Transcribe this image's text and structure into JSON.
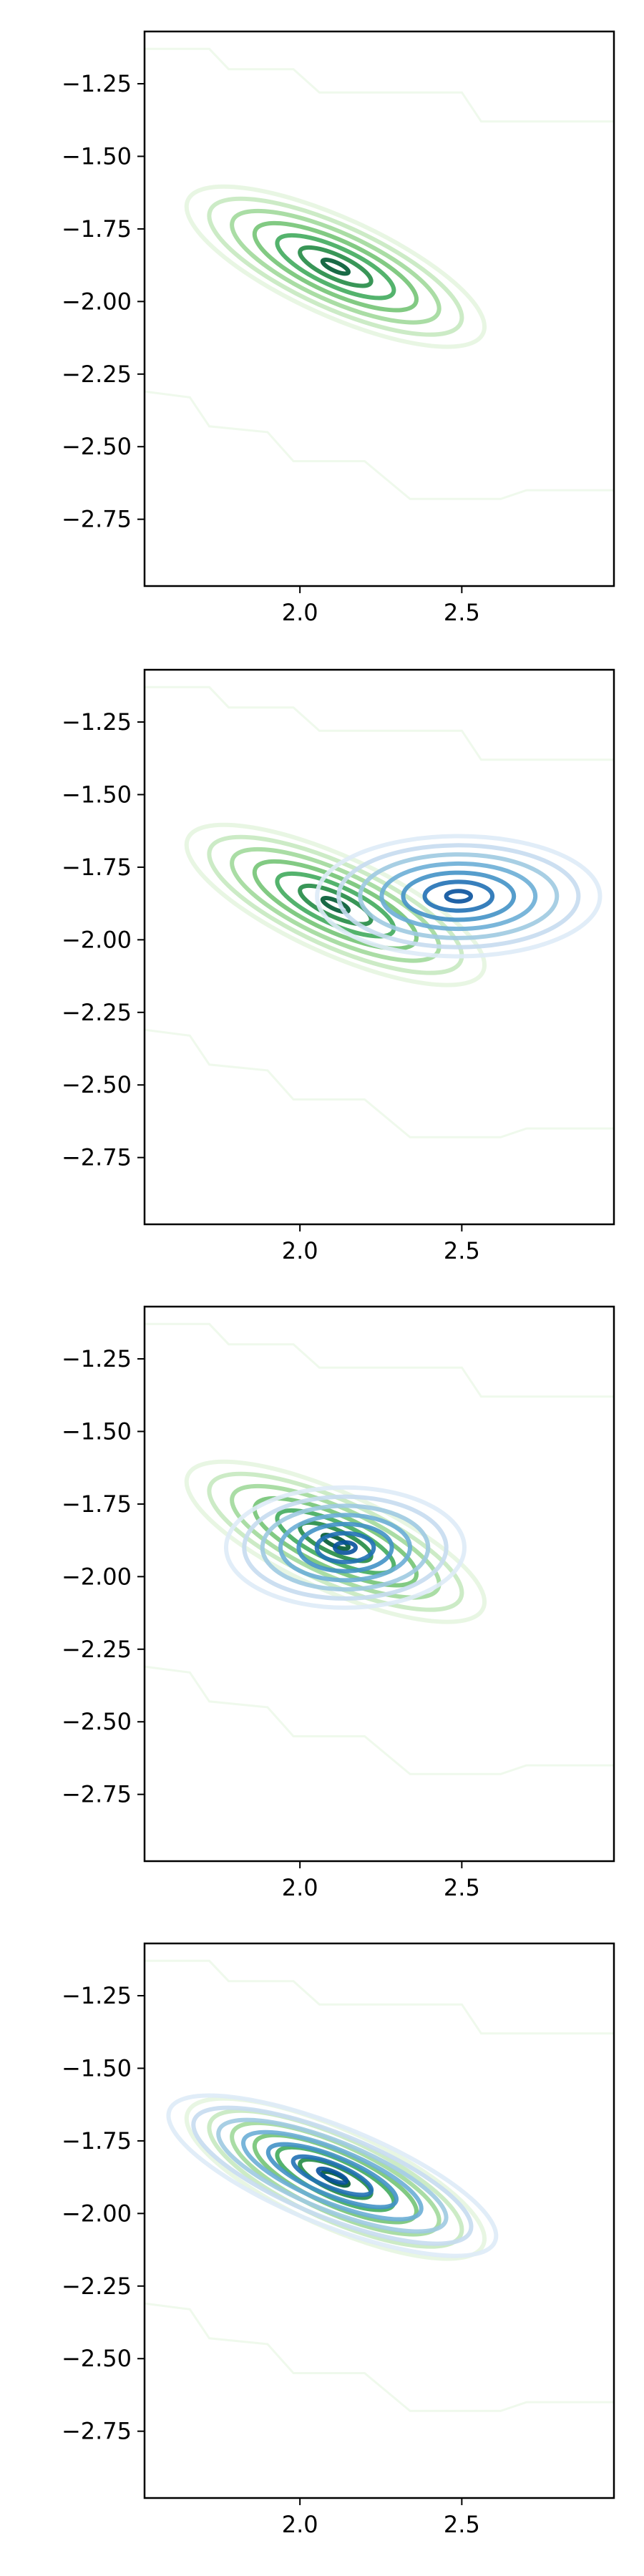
{
  "chart_data": [
    {
      "type": "contour",
      "title": "",
      "xlabel": "",
      "ylabel": "",
      "xlim": [
        1.52,
        2.97
      ],
      "ylim": [
        -2.98,
        -1.07
      ],
      "x_ticks": [
        "2.0",
        "2.5"
      ],
      "y_ticks": [
        "-1.25",
        "-1.50",
        "-1.75",
        "-2.00",
        "-2.25",
        "-2.50",
        "-2.75"
      ],
      "grid": false,
      "series": [
        {
          "colormap": "Greens",
          "center": [
            2.11,
            -1.88
          ],
          "sigma": [
            0.2,
            0.12
          ],
          "correlation": -0.75,
          "levels": 7
        }
      ]
    },
    {
      "type": "contour",
      "title": "",
      "xlabel": "",
      "ylabel": "",
      "xlim": [
        1.52,
        2.97
      ],
      "ylim": [
        -2.98,
        -1.07
      ],
      "x_ticks": [
        "2.0",
        "2.5"
      ],
      "y_ticks": [
        "-1.25",
        "-1.50",
        "-1.75",
        "-2.00",
        "-2.25",
        "-2.50",
        "-2.75"
      ],
      "grid": false,
      "series": [
        {
          "colormap": "Greens",
          "center": [
            2.11,
            -1.88
          ],
          "sigma": [
            0.2,
            0.12
          ],
          "correlation": -0.75,
          "levels": 7
        },
        {
          "colormap": "Blues",
          "center": [
            2.49,
            -1.85
          ],
          "sigma": [
            0.19,
            0.09
          ],
          "correlation": 0.0,
          "levels": 7
        }
      ]
    },
    {
      "type": "contour",
      "title": "",
      "xlabel": "",
      "ylabel": "",
      "xlim": [
        1.52,
        2.97
      ],
      "ylim": [
        -2.98,
        -1.07
      ],
      "x_ticks": [
        "2.0",
        "2.5"
      ],
      "y_ticks": [
        "-1.25",
        "-1.50",
        "-1.75",
        "-2.00",
        "-2.25",
        "-2.50",
        "-2.75"
      ],
      "grid": false,
      "series": [
        {
          "colormap": "Greens",
          "center": [
            2.11,
            -1.88
          ],
          "sigma": [
            0.2,
            0.12
          ],
          "correlation": -0.75,
          "levels": 7
        },
        {
          "colormap": "Blues",
          "center": [
            2.14,
            -1.9
          ],
          "sigma": [
            0.16,
            0.09
          ],
          "correlation": 0.0,
          "levels": 7
        }
      ]
    },
    {
      "type": "contour",
      "title": "",
      "xlabel": "",
      "ylabel": "",
      "xlim": [
        1.52,
        2.97
      ],
      "ylim": [
        -2.98,
        -1.07
      ],
      "x_ticks": [
        "2.0",
        "2.5"
      ],
      "y_ticks": [
        "-1.25",
        "-1.50",
        "-1.75",
        "-2.00",
        "-2.25",
        "-2.50",
        "-2.75"
      ],
      "grid": false,
      "series": [
        {
          "colormap": "Greens",
          "center": [
            2.11,
            -1.88
          ],
          "sigma": [
            0.2,
            0.12
          ],
          "correlation": -0.75,
          "levels": 7
        },
        {
          "colormap": "Blues",
          "center": [
            2.1,
            -1.87
          ],
          "sigma": [
            0.22,
            0.12
          ],
          "correlation": -0.75,
          "levels": 7
        }
      ]
    }
  ],
  "colors": {
    "greens": [
      "#e5f5e0",
      "#c7e9c0",
      "#a1d99b",
      "#74c476",
      "#41ab5d",
      "#238b45",
      "#005a32"
    ],
    "blues": [
      "#deebf7",
      "#c6dbef",
      "#9ecae1",
      "#6baed6",
      "#4292c6",
      "#2171b5",
      "#08519c"
    ],
    "frame": "#000000"
  }
}
